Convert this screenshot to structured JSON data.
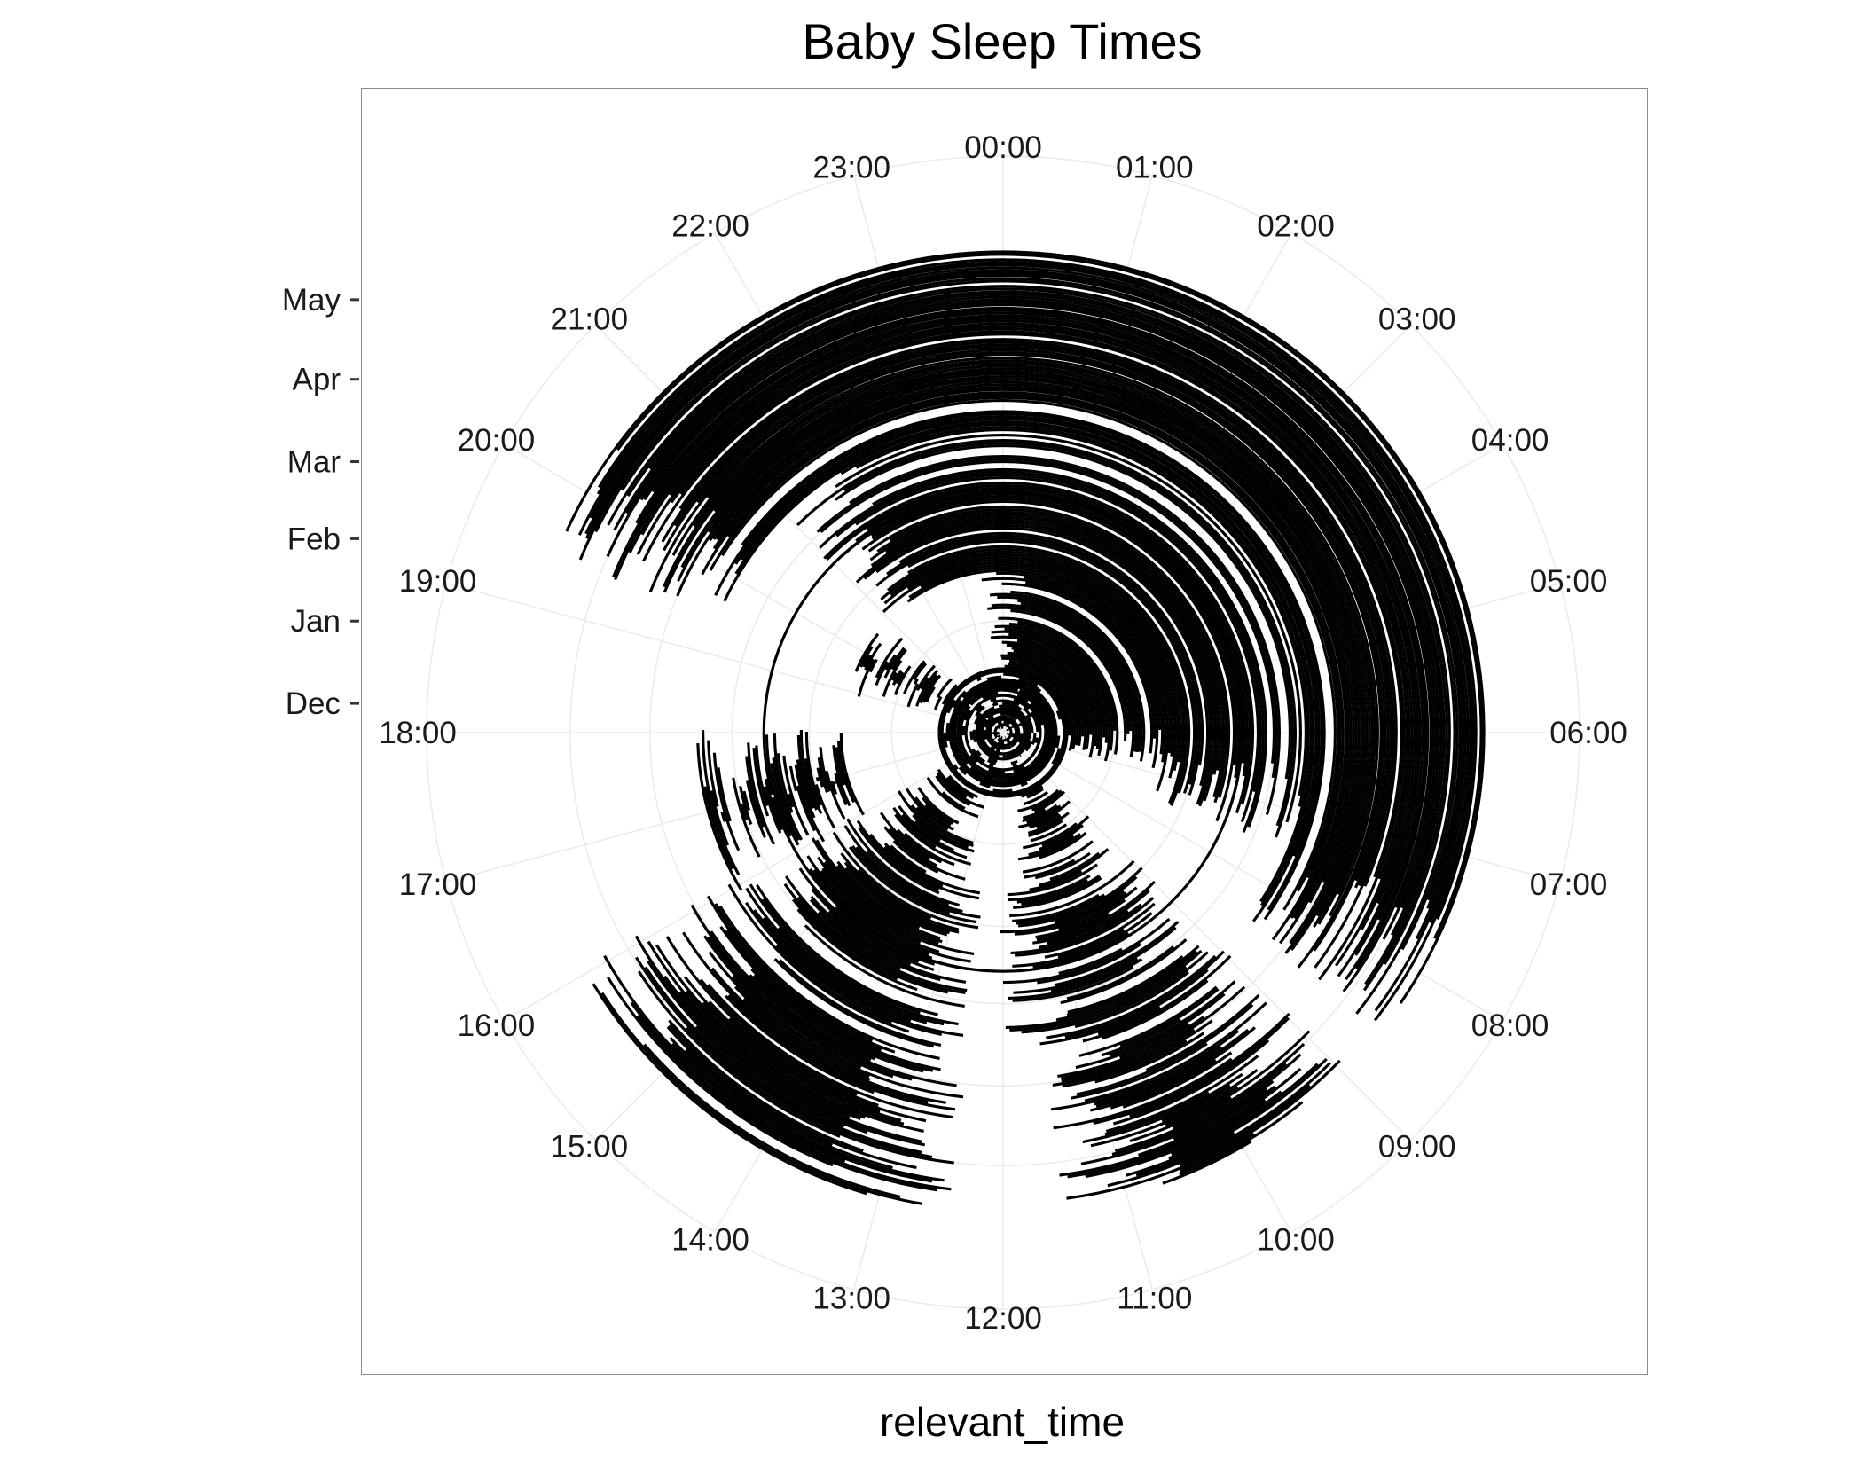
{
  "chart_data": {
    "type": "polar-bar",
    "title": "Baby Sleep Times",
    "xlabel": "relevant_time",
    "ylabel": "",
    "angular_axis": {
      "ticks": [
        "00:00",
        "01:00",
        "02:00",
        "03:00",
        "04:00",
        "05:00",
        "06:00",
        "07:00",
        "08:00",
        "09:00",
        "10:00",
        "11:00",
        "12:00",
        "13:00",
        "14:00",
        "15:00",
        "16:00",
        "17:00",
        "18:00",
        "19:00",
        "20:00",
        "21:00",
        "22:00",
        "23:00"
      ]
    },
    "radial_axis": {
      "ticks": [
        "Dec",
        "Jan",
        "Feb",
        "Mar",
        "Apr",
        "May"
      ],
      "range": [
        "2015-11-20",
        "2016-05-30"
      ]
    },
    "grid": true,
    "colors": {
      "sleep": "#000000",
      "grid": "#ebebeb",
      "panel_border": "#8c8c8c"
    },
    "series": [
      {
        "name": "",
        "description_key": "sleep intervals per day",
        "phases": [
          {
            "from": "2015-11-20",
            "to": "2015-12-15",
            "pattern": "fragmented",
            "segments": [
              [
                "00:30",
                "02:10"
              ],
              [
                "03:40",
                "05:00"
              ],
              [
                "06:50",
                "08:00"
              ],
              [
                "09:40",
                "10:30"
              ],
              [
                "12:10",
                "13:00"
              ],
              [
                "14:40",
                "15:30"
              ],
              [
                "17:20",
                "18:10"
              ],
              [
                "20:00",
                "21:10"
              ],
              [
                "22:30",
                "23:20"
              ]
            ]
          },
          {
            "from": "2015-12-15",
            "to": "2016-01-20",
            "pattern": "night-plus-naps",
            "segments": [
              [
                "00:00",
                "06:30"
              ],
              [
                "09:30",
                "11:00"
              ],
              [
                "13:30",
                "15:30"
              ],
              [
                "19:30",
                "20:30"
              ]
            ]
          },
          {
            "from": "2016-01-20",
            "to": "2016-03-15",
            "pattern": "night-plus-naps",
            "segments": [
              [
                "21:30",
                "07:00"
              ],
              [
                "09:30",
                "11:30"
              ],
              [
                "13:00",
                "15:30"
              ],
              [
                "16:30",
                "17:30"
              ]
            ]
          },
          {
            "from": "2016-03-15",
            "to": "2016-05-20",
            "pattern": "night-plus-naps",
            "segments": [
              [
                "20:00",
                "08:00"
              ],
              [
                "09:30",
                "11:00"
              ],
              [
                "13:00",
                "15:30"
              ]
            ]
          }
        ],
        "gaps": [
          "2016-03-05",
          "2016-03-22"
        ]
      }
    ]
  }
}
